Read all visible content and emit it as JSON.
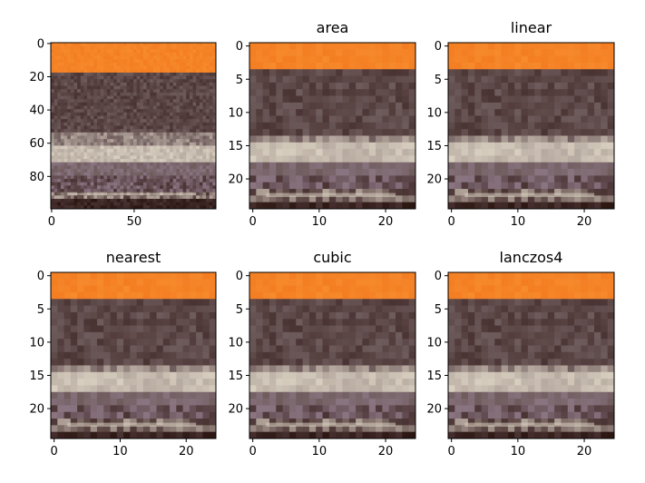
{
  "chart_data": [
    {
      "type": "heatmap",
      "title": "",
      "image_size": [
        100,
        100
      ],
      "xlim": [
        0,
        99
      ],
      "ylim": [
        99,
        0
      ],
      "xticks": [
        0,
        50
      ],
      "yticks": [
        0,
        20,
        40,
        60,
        80
      ],
      "xtick_labels": [
        "0",
        "50"
      ],
      "ytick_labels": [
        "0",
        "20",
        "40",
        "60",
        "80"
      ]
    },
    {
      "type": "heatmap",
      "title": "area",
      "image_size": [
        25,
        25
      ],
      "xlim": [
        0,
        24
      ],
      "ylim": [
        24,
        0
      ],
      "xticks": [
        0,
        10,
        20
      ],
      "yticks": [
        0,
        5,
        10,
        15,
        20
      ],
      "xtick_labels": [
        "0",
        "10",
        "20"
      ],
      "ytick_labels": [
        "0",
        "5",
        "10",
        "15",
        "20"
      ]
    },
    {
      "type": "heatmap",
      "title": "linear",
      "image_size": [
        25,
        25
      ],
      "xlim": [
        0,
        24
      ],
      "ylim": [
        24,
        0
      ],
      "xticks": [
        0,
        10,
        20
      ],
      "yticks": [
        0,
        5,
        10,
        15,
        20
      ],
      "xtick_labels": [
        "0",
        "10",
        "20"
      ],
      "ytick_labels": [
        "0",
        "5",
        "10",
        "15",
        "20"
      ]
    },
    {
      "type": "heatmap",
      "title": "nearest",
      "image_size": [
        25,
        25
      ],
      "xlim": [
        0,
        24
      ],
      "ylim": [
        24,
        0
      ],
      "xticks": [
        0,
        10,
        20
      ],
      "yticks": [
        0,
        5,
        10,
        15,
        20
      ],
      "xtick_labels": [
        "0",
        "10",
        "20"
      ],
      "ytick_labels": [
        "0",
        "5",
        "10",
        "15",
        "20"
      ]
    },
    {
      "type": "heatmap",
      "title": "cubic",
      "image_size": [
        25,
        25
      ],
      "xlim": [
        0,
        24
      ],
      "ylim": [
        24,
        0
      ],
      "xticks": [
        0,
        10,
        20
      ],
      "yticks": [
        0,
        5,
        10,
        15,
        20
      ],
      "xtick_labels": [
        "0",
        "10",
        "20"
      ],
      "ytick_labels": [
        "0",
        "5",
        "10",
        "15",
        "20"
      ]
    },
    {
      "type": "heatmap",
      "title": "lanczos4",
      "image_size": [
        25,
        25
      ],
      "xlim": [
        0,
        24
      ],
      "ylim": [
        24,
        0
      ],
      "xticks": [
        0,
        10,
        20
      ],
      "yticks": [
        0,
        5,
        10,
        15,
        20
      ],
      "xtick_labels": [
        "0",
        "10",
        "20"
      ],
      "ytick_labels": [
        "0",
        "5",
        "10",
        "15",
        "20"
      ]
    }
  ],
  "colors": {
    "sky_orange": "#f47d22",
    "sky_orange_light": "#f68a2c",
    "sea_dark": "#4a3333",
    "sea_mid": "#6e5b5b",
    "wave_light": "#b7aaa0",
    "wave_bright": "#d8cfc0",
    "foam_purple": "#8a7582",
    "shore_dark": "#2a1510"
  }
}
